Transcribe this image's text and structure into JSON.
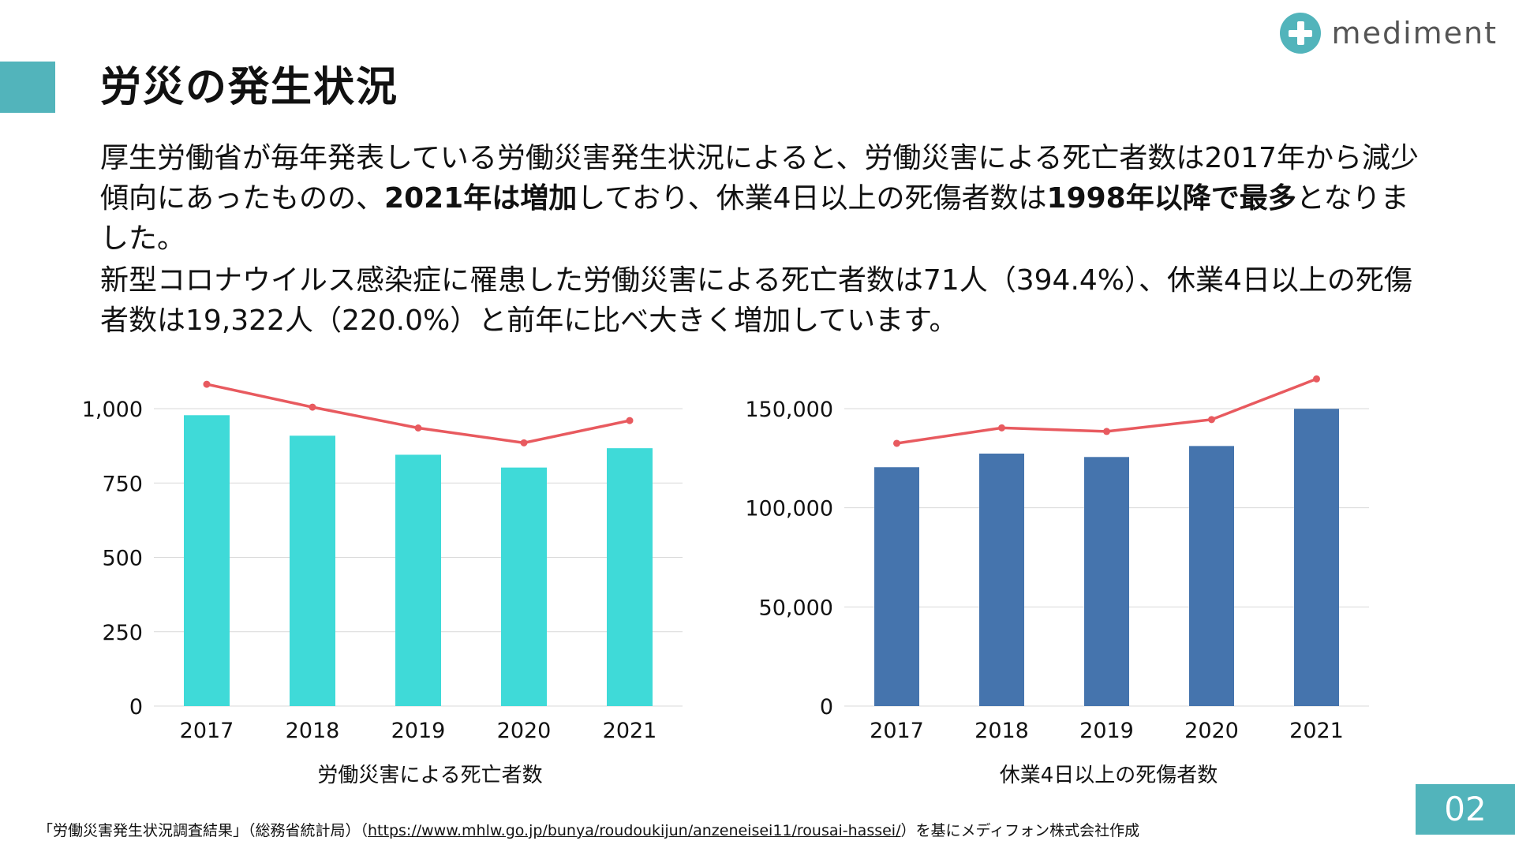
{
  "header": {
    "title": "労災の発生状況",
    "logo_text": "mediment"
  },
  "body": {
    "p1_a": "厚生労働省が毎年発表している労働災害発生状況によると、労働災害による死亡者数は2017年から減少傾向にあったものの、",
    "p1_b": "2021年は増加",
    "p1_c": "しており、休業4日以上の死傷者数は",
    "p1_d": "1998年以降で最多",
    "p1_e": "となりました。",
    "p2": "新型コロナウイルス感染症に罹患した労働災害による死亡者数は71人（394.4%）、休業4日以上の死傷者数は19,322人（220.0%）と前年に比べ大きく増加しています。"
  },
  "chart_data": [
    {
      "type": "bar",
      "title": "労働災害による死亡者数",
      "categories": [
        "2017",
        "2018",
        "2019",
        "2020",
        "2021"
      ],
      "values": [
        978,
        909,
        845,
        802,
        867
      ],
      "line_values": [
        1082,
        1005,
        935,
        885,
        960
      ],
      "ylim": [
        0,
        1000
      ],
      "yticks": [
        0,
        250,
        500,
        750,
        1000
      ],
      "ytick_labels": [
        "0",
        "250",
        "500",
        "750",
        "1,000"
      ],
      "bar_color": "#3fdad8",
      "line_color": "#e85a5f",
      "grid": true
    },
    {
      "type": "bar",
      "title": "休業4日以上の死傷者数",
      "categories": [
        "2017",
        "2018",
        "2019",
        "2020",
        "2021"
      ],
      "values": [
        120460,
        127329,
        125611,
        131156,
        149918
      ],
      "line_values": [
        132500,
        140300,
        138500,
        144500,
        165000
      ],
      "ylim": [
        0,
        150000
      ],
      "yticks": [
        0,
        50000,
        100000,
        150000
      ],
      "ytick_labels": [
        "0",
        "50,000",
        "100,000",
        "150,000"
      ],
      "bar_color": "#4574ad",
      "line_color": "#e85a5f",
      "grid": true
    }
  ],
  "footer": {
    "source_prefix": "「労働災害発生状況調査結果」（総務省統計局）（",
    "source_url": "https://www.mhlw.go.jp/bunya/roudoukijun/anzeneisei11/rousai-hassei/",
    "source_suffix": "）を基にメディフォン株式会社作成",
    "page_number": "02"
  }
}
